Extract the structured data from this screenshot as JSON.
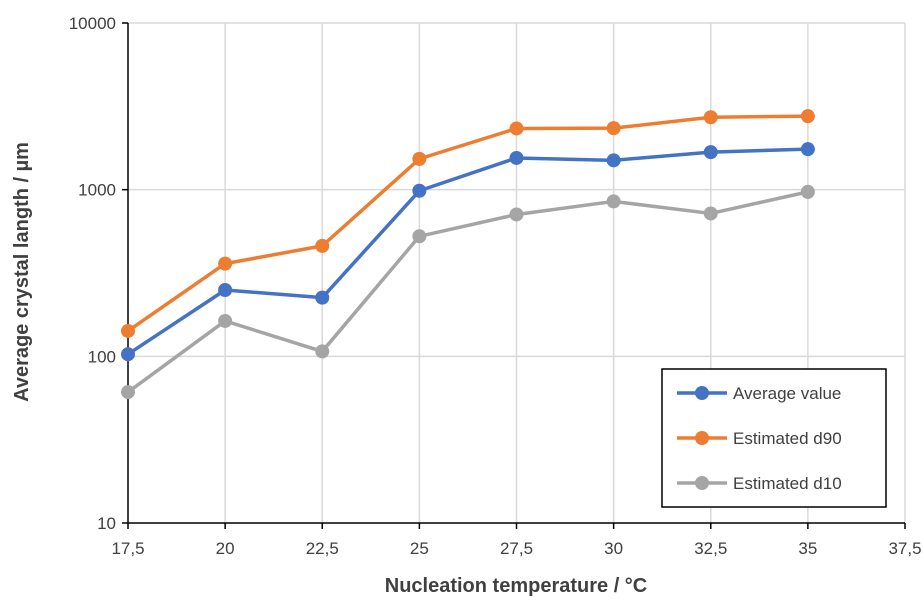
{
  "chart_data": {
    "type": "line",
    "title": "",
    "xlabel": "Nucleation temperature / °C",
    "ylabel": "Average crystal langth / µm",
    "xlim": [
      17.5,
      37.5
    ],
    "ylim": [
      10,
      10000
    ],
    "yscale": "log",
    "x_ticks": [
      "17,5",
      "20",
      "22,5",
      "25",
      "27,5",
      "30",
      "32,5",
      "35",
      "37,5"
    ],
    "y_ticks": [
      "10",
      "100",
      "1000",
      "10000"
    ],
    "grid": true,
    "legend_position": "bottom-right",
    "x": [
      17.5,
      20,
      22.5,
      25,
      27.5,
      30,
      32.5,
      35
    ],
    "series": [
      {
        "name": "Average value",
        "color": "#4472C4",
        "values": [
          103,
          250,
          225,
          985,
          1550,
          1500,
          1680,
          1750
        ]
      },
      {
        "name": "Estimated d90",
        "color": "#ED7D31",
        "values": [
          142,
          360,
          460,
          1530,
          2330,
          2340,
          2720,
          2760
        ]
      },
      {
        "name": "Estimated d10",
        "color": "#A5A5A5",
        "values": [
          61,
          163,
          107,
          525,
          710,
          850,
          720,
          970
        ]
      }
    ]
  }
}
